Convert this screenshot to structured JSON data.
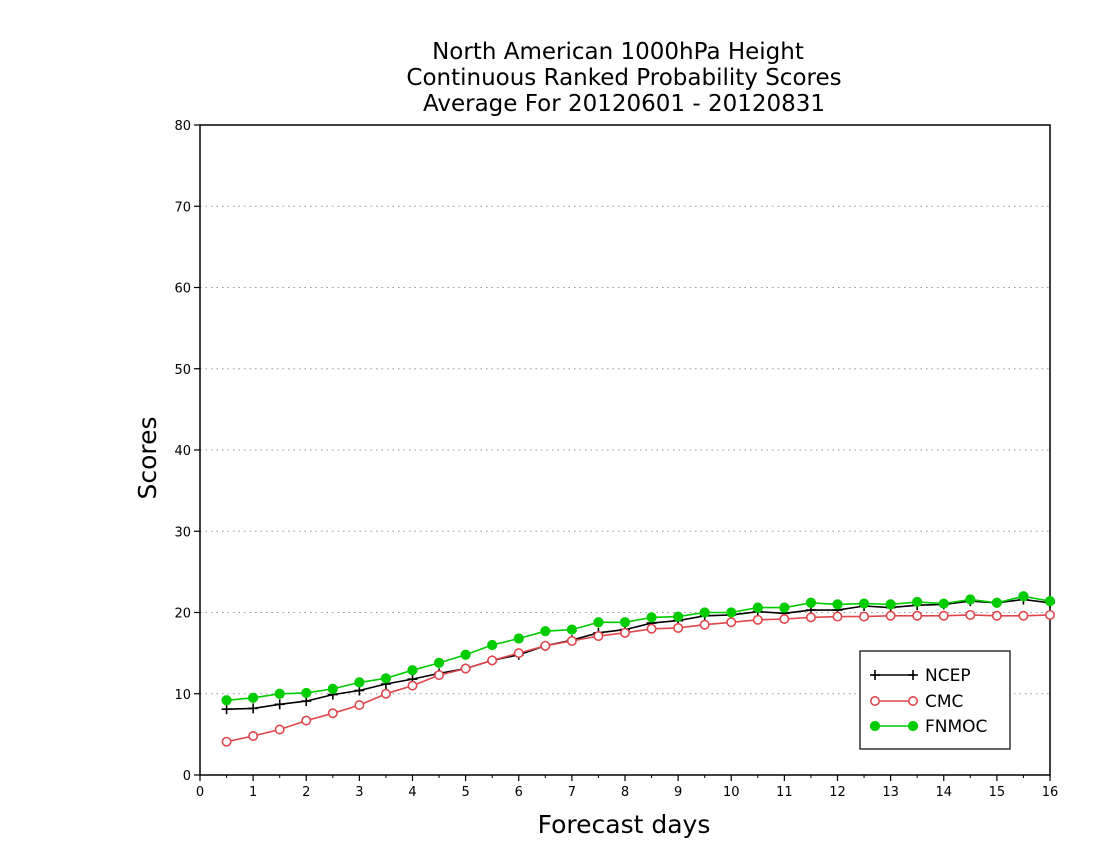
{
  "chart_data": {
    "type": "line",
    "title": [
      "North American 1000hPa Height",
      "Continuous Ranked Probability Scores",
      "Average For 20120601 - 20120831"
    ],
    "xlabel": "Forecast days",
    "ylabel": "Scores",
    "xlim": [
      0,
      16
    ],
    "ylim": [
      0,
      80
    ],
    "xticks": [
      "0",
      "1",
      "2",
      "3",
      "4",
      "5",
      "6",
      "7",
      "8",
      "9",
      "10",
      "11",
      "12",
      "13",
      "14",
      "15",
      "16"
    ],
    "yticks": [
      "0",
      "10",
      "20",
      "30",
      "40",
      "50",
      "60",
      "70",
      "80"
    ],
    "grid": "horizontal dotted",
    "legend_position": "bottom-right",
    "x": [
      0.5,
      1,
      1.5,
      2,
      2.5,
      3,
      3.5,
      4,
      4.5,
      5,
      5.5,
      6,
      6.5,
      7,
      7.5,
      8,
      8.5,
      9,
      9.5,
      10,
      10.5,
      11,
      11.5,
      12,
      12.5,
      13,
      13.5,
      14,
      14.5,
      15,
      15.5,
      16
    ],
    "series": [
      {
        "name": "NCEP",
        "color": "#000000",
        "marker": "plus",
        "values": [
          8.1,
          8.2,
          8.7,
          9.1,
          9.9,
          10.4,
          11.2,
          11.8,
          12.5,
          13.1,
          14.1,
          14.8,
          15.9,
          16.6,
          17.5,
          17.9,
          18.7,
          19.0,
          19.6,
          19.7,
          20.1,
          19.9,
          20.3,
          20.3,
          20.8,
          20.6,
          20.9,
          21.0,
          21.4,
          21.2,
          21.6,
          21.2
        ]
      },
      {
        "name": "CMC",
        "color": "#e0474c",
        "marker": "open-circle",
        "values": [
          4.1,
          4.8,
          5.6,
          6.7,
          7.6,
          8.6,
          10.0,
          11.0,
          12.3,
          13.1,
          14.1,
          15.0,
          15.9,
          16.5,
          17.1,
          17.5,
          18.0,
          18.1,
          18.5,
          18.8,
          19.1,
          19.2,
          19.4,
          19.5,
          19.5,
          19.6,
          19.6,
          19.6,
          19.7,
          19.6,
          19.6,
          19.7
        ]
      },
      {
        "name": "FNMOC",
        "color": "#00cc00",
        "marker": "filled-circle",
        "values": [
          9.2,
          9.5,
          10.0,
          10.1,
          10.6,
          11.4,
          11.9,
          12.9,
          13.8,
          14.8,
          16.0,
          16.8,
          17.7,
          17.9,
          18.8,
          18.8,
          19.4,
          19.5,
          20.0,
          20.0,
          20.6,
          20.6,
          21.2,
          21.0,
          21.1,
          21.0,
          21.3,
          21.1,
          21.6,
          21.2,
          22.0,
          21.4
        ]
      }
    ]
  }
}
